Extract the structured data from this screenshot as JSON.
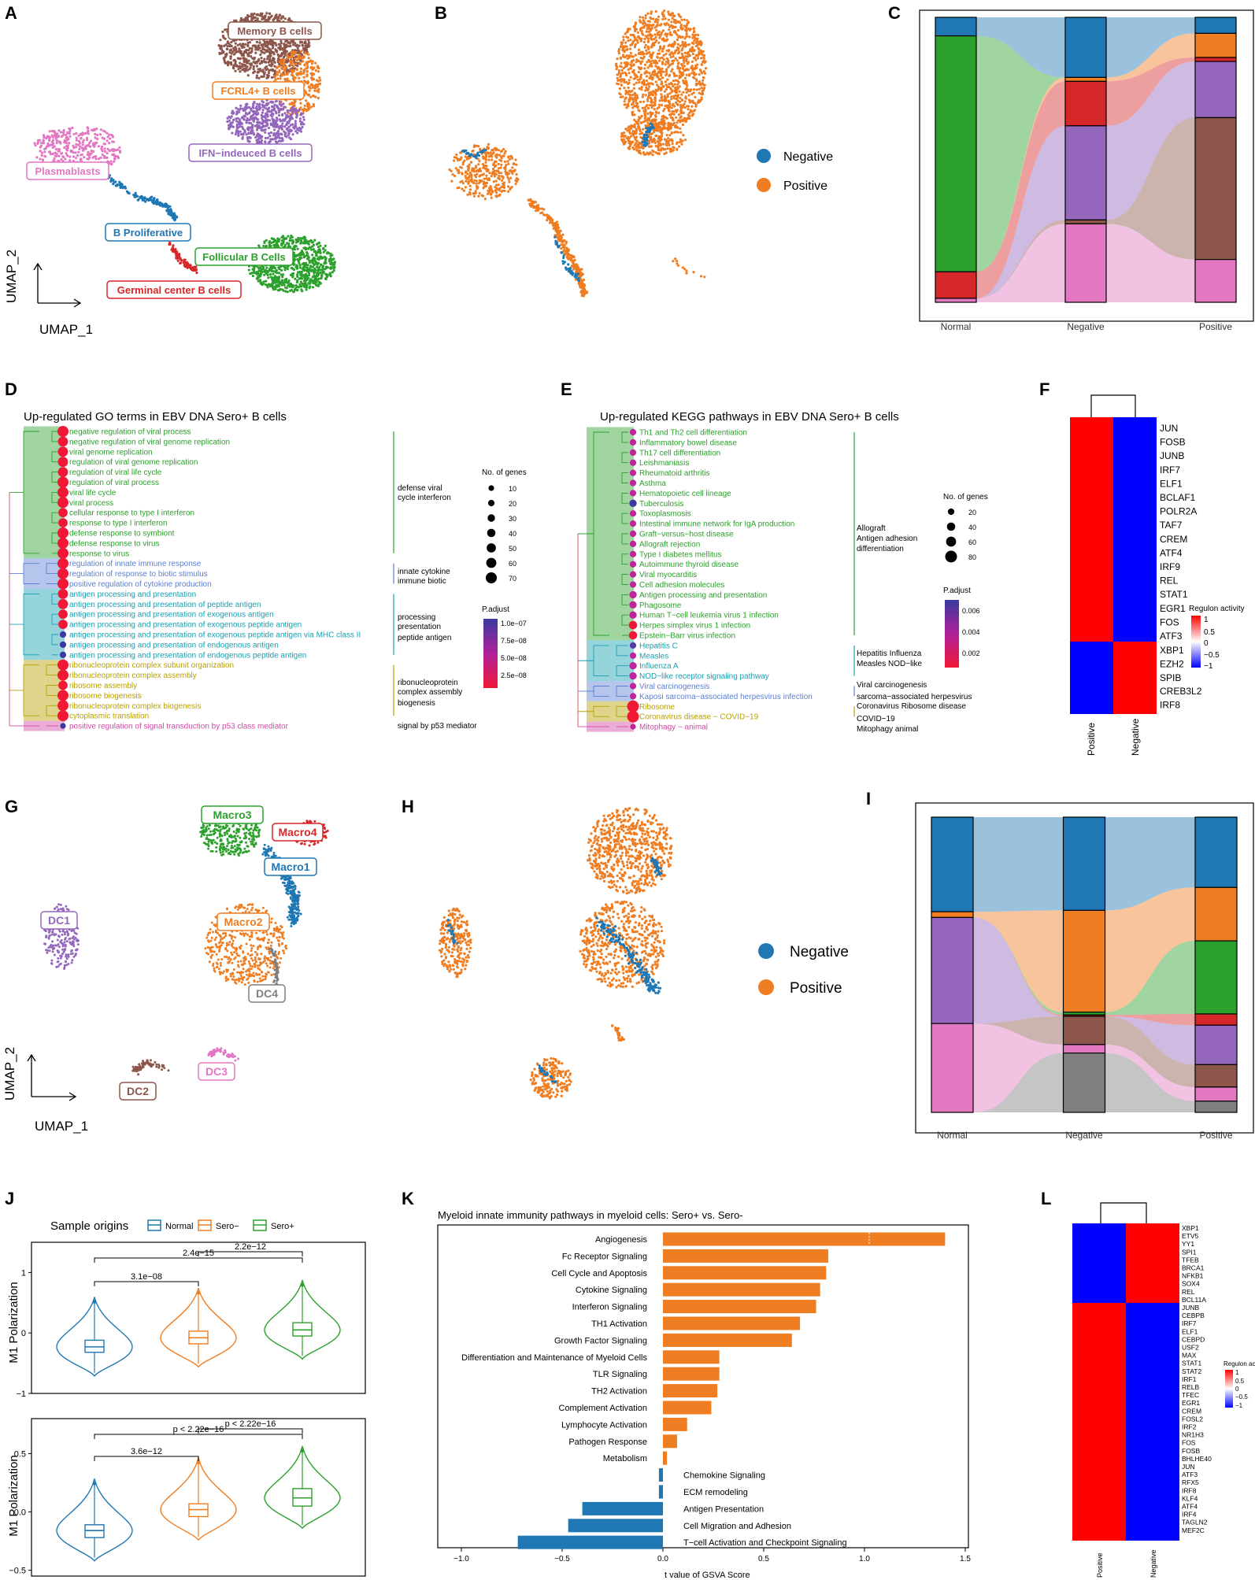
{
  "panel_letters": [
    "A",
    "B",
    "C",
    "D",
    "E",
    "F",
    "G",
    "H",
    "I",
    "J",
    "K",
    "L"
  ],
  "colors": {
    "blue": "#1f77b4",
    "orange": "#ef7d22",
    "green": "#2ca02c",
    "red": "#d62728",
    "purple": "#9467bd",
    "brown": "#8c564b",
    "pink": "#e377c2",
    "grey": "#7f7f7f",
    "go_green": "#2ca02c",
    "go_blue": "#5b7fd3",
    "go_teal": "#17a0b0",
    "go_olive": "#b8a000",
    "go_pink": "#d448a8",
    "heat_red": "#ff0000",
    "heat_blue": "#0000ff"
  },
  "panelA": {
    "clusters": [
      {
        "label": "Memory B cells",
        "color": "#8c564b"
      },
      {
        "label": "FCRL4+ B cells",
        "color": "#ef7d22"
      },
      {
        "label": "IFN−indeuced B cells",
        "color": "#9467bd"
      },
      {
        "label": "Plasmablasts",
        "color": "#e377c2"
      },
      {
        "label": "B Proliferative",
        "color": "#1f77b4"
      },
      {
        "label": "Follicular B Cells",
        "color": "#2ca02c"
      },
      {
        "label": "Germinal center B cells",
        "color": "#d62728"
      }
    ],
    "xaxis": "UMAP_1",
    "yaxis": "UMAP_2"
  },
  "panelB": {
    "legend": [
      {
        "label": "Negative",
        "color": "#1f77b4"
      },
      {
        "label": "Positive",
        "color": "#ef7d22"
      }
    ]
  },
  "panelC": {
    "chart_data": {
      "type": "stacked-bar-alluvial",
      "categories": [
        "Normal",
        "Negative",
        "Positive"
      ],
      "series": [
        {
          "name": "B Proliferative",
          "color": "#1f77b4",
          "values": [
            0.07,
            0.23,
            0.06
          ]
        },
        {
          "name": "Follicular B Cells",
          "color": "#2ca02c",
          "values": [
            0.89,
            0.0,
            0.0
          ]
        },
        {
          "name": "FCRL4+ B cells",
          "color": "#ef7d22",
          "values": [
            0.0,
            0.015,
            0.09
          ]
        },
        {
          "name": "Germinal center B cells",
          "color": "#d62728",
          "values": [
            0.1,
            0.17,
            0.015
          ]
        },
        {
          "name": "IFN-indeuced B cells",
          "color": "#9467bd",
          "values": [
            0.0,
            0.36,
            0.21
          ]
        },
        {
          "name": "Memory B cells",
          "color": "#8c564b",
          "values": [
            0.0,
            0.015,
            0.53
          ]
        },
        {
          "name": "Plasmablasts",
          "color": "#e377c2",
          "values": [
            0.015,
            0.3,
            0.16
          ]
        }
      ]
    }
  },
  "panelD": {
    "title": "Up-regulated GO terms in EBV DNA Sero+ B cells",
    "terms": [
      {
        "t": "negative regulation of viral process",
        "g": 0,
        "s": 70
      },
      {
        "t": "negative regulation of viral genome replication",
        "g": 0,
        "s": 60
      },
      {
        "t": "viral genome replication",
        "g": 0,
        "s": 60
      },
      {
        "t": "regulation of viral genome replication",
        "g": 0,
        "s": 60
      },
      {
        "t": "regulation of viral life cycle",
        "g": 0,
        "s": 60
      },
      {
        "t": "regulation of viral process",
        "g": 0,
        "s": 70
      },
      {
        "t": "viral life cycle",
        "g": 0,
        "s": 70
      },
      {
        "t": "viral process",
        "g": 0,
        "s": 70
      },
      {
        "t": "cellular response to type I interferon",
        "g": 0,
        "s": 50
      },
      {
        "t": "response to type I interferon",
        "g": 0,
        "s": 50
      },
      {
        "t": "defense response to symbiont",
        "g": 0,
        "s": 70
      },
      {
        "t": "defense response to virus",
        "g": 0,
        "s": 70
      },
      {
        "t": "response to virus",
        "g": 0,
        "s": 70
      },
      {
        "t": "regulation of innate immune response",
        "g": 1,
        "s": 70
      },
      {
        "t": "regulation of response to biotic stimulus",
        "g": 1,
        "s": 70
      },
      {
        "t": "positive regulation of cytokine production",
        "g": 1,
        "s": 70
      },
      {
        "t": "antigen processing and presentation",
        "g": 2,
        "s": 60
      },
      {
        "t": "antigen processing and presentation of peptide antigen",
        "g": 2,
        "s": 60
      },
      {
        "t": "antigen processing and presentation of exogenous antigen",
        "g": 2,
        "s": 50
      },
      {
        "t": "antigen processing and presentation of exogenous peptide antigen",
        "g": 2,
        "s": 50
      },
      {
        "t": "antigen processing and presentation of exogenous peptide antigen via MHC class II",
        "g": 2,
        "s": 20
      },
      {
        "t": "antigen processing and presentation of endogenous antigen",
        "g": 2,
        "s": 20
      },
      {
        "t": "antigen processing and presentation of endogenous peptide antigen",
        "g": 2,
        "s": 20
      },
      {
        "t": "ribonucleoprotein complex subunit organization",
        "g": 3,
        "s": 70
      },
      {
        "t": "ribonucleoprotein complex assembly",
        "g": 3,
        "s": 70
      },
      {
        "t": "ribosome assembly",
        "g": 3,
        "s": 50
      },
      {
        "t": "ribosome biogenesis",
        "g": 3,
        "s": 70
      },
      {
        "t": "ribonucleoprotein complex biogenesis",
        "g": 3,
        "s": 70
      },
      {
        "t": "cytoplasmic translation",
        "g": 3,
        "s": 70
      },
      {
        "t": "positive regulation of signal transduction by p53 class mediator",
        "g": 4,
        "s": 10
      }
    ],
    "group_colors": [
      "#2ca02c",
      "#5b7fd3",
      "#17a0b0",
      "#b8a000",
      "#d448a8"
    ],
    "group_labels": [
      [
        "defense viral",
        "cycle interferon"
      ],
      [
        "innate cytokine",
        "immune biotic"
      ],
      [
        "processing",
        "presentation",
        "peptide antigen"
      ],
      [
        "ribonucleoprotein",
        "complex assembly",
        "biogenesis"
      ],
      [
        "signal by p53 mediator"
      ]
    ],
    "size_legend": {
      "title": "No. of genes",
      "values": [
        10,
        20,
        30,
        40,
        50,
        60,
        70
      ]
    },
    "color_legend": {
      "title": "P.adjust",
      "ticks": [
        "1.0e−07",
        "7.5e−08",
        "5.0e−08",
        "2.5e−08"
      ]
    }
  },
  "panelE": {
    "title": "Up-regulated KEGG pathways in EBV DNA Sero+ B cells",
    "terms": [
      {
        "t": "Th1 and Th2 cell differentiation",
        "g": 0,
        "s": 20
      },
      {
        "t": "Inflammatory bowel disease",
        "g": 0,
        "s": 20
      },
      {
        "t": "Th17 cell differentiation",
        "g": 0,
        "s": 20
      },
      {
        "t": "Leishmaniasis",
        "g": 0,
        "s": 20
      },
      {
        "t": "Rheumatoid arthritis",
        "g": 0,
        "s": 20
      },
      {
        "t": "Asthma",
        "g": 0,
        "s": 20
      },
      {
        "t": "Hematopoietic cell lineage",
        "g": 0,
        "s": 20
      },
      {
        "t": "Tuberculosis",
        "g": 0,
        "s": 30
      },
      {
        "t": "Toxoplasmosis",
        "g": 0,
        "s": 20
      },
      {
        "t": "Intestinal immune network for IgA production",
        "g": 0,
        "s": 20
      },
      {
        "t": "Graft−versus−host disease",
        "g": 0,
        "s": 20
      },
      {
        "t": "Allograft rejection",
        "g": 0,
        "s": 20
      },
      {
        "t": "Type I diabetes mellitus",
        "g": 0,
        "s": 20
      },
      {
        "t": "Autoimmune thyroid disease",
        "g": 0,
        "s": 20
      },
      {
        "t": "Viral myocarditis",
        "g": 0,
        "s": 20
      },
      {
        "t": "Cell adhesion molecules",
        "g": 0,
        "s": 20
      },
      {
        "t": "Antigen processing and presentation",
        "g": 0,
        "s": 30
      },
      {
        "t": "Phagosome",
        "g": 0,
        "s": 30
      },
      {
        "t": "Human T−cell leukemia virus 1 infection",
        "g": 0,
        "s": 30
      },
      {
        "t": "Herpes simplex virus 1 infection",
        "g": 0,
        "s": 40
      },
      {
        "t": "Epstein−Barr virus infection",
        "g": 0,
        "s": 40
      },
      {
        "t": "Hepatitis C",
        "g": 1,
        "s": 20
      },
      {
        "t": "Measles",
        "g": 1,
        "s": 20
      },
      {
        "t": "Influenza A",
        "g": 1,
        "s": 30
      },
      {
        "t": "NOD−like receptor signaling pathway",
        "g": 1,
        "s": 30
      },
      {
        "t": "Viral carcinogenesis",
        "g": 2,
        "s": 20
      },
      {
        "t": "Kaposi sarcoma−associated herpesvirus infection",
        "g": 2,
        "s": 20
      },
      {
        "t": "Ribosome",
        "g": 3,
        "s": 80
      },
      {
        "t": "Coronavirus disease − COVID−19",
        "g": 3,
        "s": 80
      },
      {
        "t": "Mitophagy − animal",
        "g": 4,
        "s": 10
      }
    ],
    "group_colors": [
      "#2ca02c",
      "#17a0b0",
      "#5b7fd3",
      "#b8a000",
      "#d448a8"
    ],
    "group_labels": [
      [
        "Allograft",
        "Antigen adhesion",
        "differentiation"
      ],
      [
        "Hepatitis Influenza",
        "Measles NOD−like"
      ],
      [
        "Viral carcinogenesis",
        "sarcoma−associated herpesvirus"
      ],
      [
        "Coronavirus Ribosome disease",
        "COVID−19"
      ],
      [
        "Mitophagy animal"
      ]
    ],
    "size_legend": {
      "title": "No. of genes",
      "values": [
        20,
        40,
        60,
        80
      ]
    },
    "color_legend": {
      "title": "P.adjust",
      "ticks": [
        "0.006",
        "0.004",
        "0.002"
      ]
    }
  },
  "panelF": {
    "columns": [
      "Positive",
      "Negative"
    ],
    "top_genes": [
      "JUN",
      "FOSB",
      "JUNB",
      "IRF7",
      "ELF1",
      "BCLAF1",
      "POLR2A",
      "TAF7",
      "CREM",
      "ATF4",
      "IRF9",
      "REL",
      "STAT1",
      "EGR1",
      "FOS",
      "ATF3"
    ],
    "bottom_genes": [
      "XBP1",
      "EZH2",
      "SPIB",
      "CREB3L2",
      "IRF8"
    ],
    "legend": {
      "title": "Regulon activity",
      "ticks": [
        "1",
        "0.5",
        "0",
        "−0.5",
        "−1"
      ]
    }
  },
  "panelG": {
    "clusters": [
      {
        "label": "Macro3",
        "color": "#2ca02c"
      },
      {
        "label": "Macro4",
        "color": "#d62728"
      },
      {
        "label": "Macro1",
        "color": "#1f77b4"
      },
      {
        "label": "DC1",
        "color": "#9467bd"
      },
      {
        "label": "Macro2",
        "color": "#ef7d22"
      },
      {
        "label": "DC4",
        "color": "#7f7f7f"
      },
      {
        "label": "DC3",
        "color": "#e377c2"
      },
      {
        "label": "DC2",
        "color": "#8c564b"
      }
    ],
    "xaxis": "UMAP_1",
    "yaxis": "UMAP_2"
  },
  "panelH": {
    "legend": [
      {
        "label": "Negative",
        "color": "#1f77b4"
      },
      {
        "label": "Positive",
        "color": "#ef7d22"
      }
    ]
  },
  "panelI": {
    "chart_data": {
      "type": "stacked-bar-alluvial",
      "categories": [
        "Normal",
        "Negative",
        "Positive"
      ],
      "series": [
        {
          "name": "Macro1",
          "color": "#1f77b4",
          "values": [
            0.33,
            0.33,
            0.25
          ]
        },
        {
          "name": "Macro2",
          "color": "#ef7d22",
          "values": [
            0.02,
            0.36,
            0.19
          ]
        },
        {
          "name": "Macro3",
          "color": "#2ca02c",
          "values": [
            0.0,
            0.01,
            0.26
          ]
        },
        {
          "name": "Macro4",
          "color": "#d62728",
          "values": [
            0.0,
            0.005,
            0.04
          ]
        },
        {
          "name": "DC1",
          "color": "#9467bd",
          "values": [
            0.37,
            0.0,
            0.14
          ]
        },
        {
          "name": "DC2",
          "color": "#8c564b",
          "values": [
            0.0,
            0.1,
            0.08
          ]
        },
        {
          "name": "DC3",
          "color": "#e377c2",
          "values": [
            0.31,
            0.03,
            0.05
          ]
        },
        {
          "name": "DC4",
          "color": "#7f7f7f",
          "values": [
            0.0,
            0.21,
            0.04
          ]
        }
      ]
    }
  },
  "panelJ": {
    "legend_title": "Sample origins",
    "groups": [
      "Normal",
      "Sero−",
      "Sero+"
    ],
    "group_colors": [
      "#1f77b4",
      "#ef7d22",
      "#2ca02c"
    ],
    "chart_data": [
      {
        "type": "violin",
        "ylabel": "M1 Polarization",
        "yticks": [
          "1",
          "0",
          "−1"
        ],
        "ylim": [
          -1,
          1.5
        ],
        "medians": [
          -0.23,
          -0.08,
          0.05
        ],
        "q1": [
          -0.32,
          -0.18,
          -0.05
        ],
        "q3": [
          -0.12,
          0.03,
          0.17
        ],
        "comparisons": [
          {
            "pair": [
              1,
              2
            ],
            "p": "3.1e−08"
          },
          {
            "pair": [
              1,
              3
            ],
            "p": "2.4e−15"
          },
          {
            "pair": [
              2,
              3
            ],
            "p": "2.2e−12"
          }
        ]
      },
      {
        "type": "violin",
        "ylabel": "M1 Polarization",
        "yticks": [
          "0.5",
          "0.0",
          "−0.5"
        ],
        "ylim": [
          -0.55,
          0.8
        ],
        "medians": [
          -0.16,
          0.02,
          0.12
        ],
        "q1": [
          -0.22,
          -0.04,
          0.05
        ],
        "q3": [
          -0.11,
          0.07,
          0.2
        ],
        "comparisons": [
          {
            "pair": [
              1,
              2
            ],
            "p": "3.6e−12"
          },
          {
            "pair": [
              1,
              3
            ],
            "p": "p < 2.22e−16"
          },
          {
            "pair": [
              2,
              3
            ],
            "p": "p < 2.22e−16"
          }
        ]
      }
    ]
  },
  "panelK": {
    "chart_data": {
      "type": "bar",
      "title": "Myeloid innate immunity pathways in myeloid cells: Sero+ vs. Sero-",
      "xlabel": "t value of GSVA Score",
      "xlim": [
        -1.0,
        1.5
      ],
      "xticks": [
        "−1.0",
        "−0.5",
        "0.0",
        "0.5",
        "1.0",
        "1.5"
      ],
      "categories": [
        "Angiogenesis",
        "Fc Receptor Signaling",
        "Cell Cycle and Apoptosis",
        "Cytokine Signaling",
        "Interferon Signaling",
        "TH1 Activation",
        "Growth Factor Signaling",
        "Differentiation and Maintenance of Myeloid Cells",
        "TLR Signaling",
        "TH2 Activation",
        "Complement Activation",
        "Lymphocyte Activation",
        "Pathogen Response",
        "Metabolism",
        "Chemokine Signaling",
        "ECM remodeling",
        "Antigen Presentation",
        "Cell Migration and Adhesion",
        "T−cell Activation and Checkpoint Signaling"
      ],
      "values": [
        1.4,
        0.82,
        0.81,
        0.78,
        0.76,
        0.68,
        0.64,
        0.28,
        0.28,
        0.27,
        0.24,
        0.12,
        0.07,
        0.02,
        -0.02,
        -0.02,
        -0.4,
        -0.47,
        -0.72
      ]
    }
  },
  "panelL": {
    "columns": [
      "Positive",
      "Negative"
    ],
    "top_genes": [
      "XBP1",
      "ETV5",
      "YY1",
      "SPI1",
      "TFEB",
      "BRCA1",
      "NFKB1",
      "SOX4",
      "REL"
    ],
    "bottom_genes": [
      "BCL11A",
      "JUNB",
      "CEBPB",
      "IRF7",
      "ELF1",
      "CEBPD",
      "USF2",
      "MAX",
      "STAT1",
      "STAT2",
      "IRF1",
      "RELB",
      "TFEC",
      "EGR1",
      "CREM",
      "FOSL2",
      "IRF2",
      "NR1H3",
      "FOS",
      "FOSB",
      "BHLHE40",
      "JUN",
      "ATF3",
      "RFX5",
      "IRF8",
      "KLF4",
      "ATF4",
      "IRF4",
      "TAGLN2",
      "MEF2C"
    ],
    "legend": {
      "title": "Regulon activity",
      "ticks": [
        "1",
        "0.5",
        "0",
        "−0.5",
        "−1"
      ]
    }
  }
}
